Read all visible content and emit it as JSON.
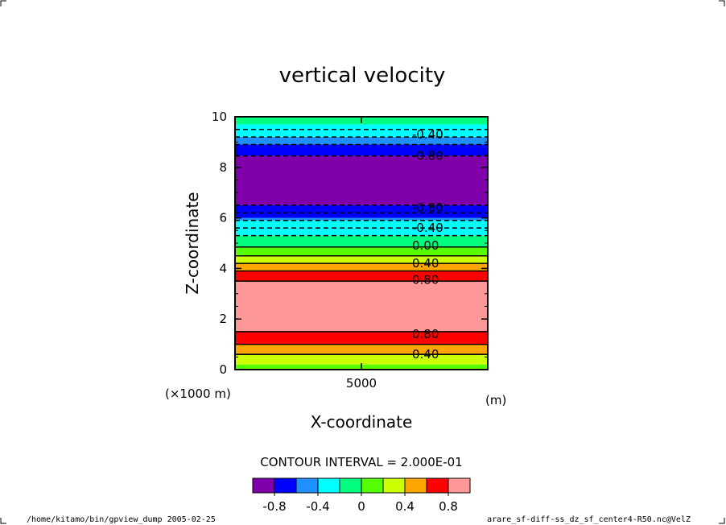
{
  "chart_data": {
    "type": "heatmap",
    "title": "vertical velocity",
    "xlabel": "X-coordinate",
    "ylabel": "Z-coordinate",
    "x_unit_label": "(m)",
    "x_scale_label": "(×1000 m)",
    "y_range": [
      0,
      10
    ],
    "y_ticks": [
      "0",
      "2",
      "4",
      "6",
      "8",
      "10"
    ],
    "x_ticks": [
      "5000"
    ],
    "bands": [
      {
        "z0": 0.0,
        "z1": 0.2,
        "color": "#55ff00"
      },
      {
        "z0": 0.2,
        "z1": 0.6,
        "color": "#ccff00"
      },
      {
        "z0": 0.6,
        "z1": 1.0,
        "color": "#ffa500"
      },
      {
        "z0": 1.0,
        "z1": 1.5,
        "color": "#ff0000"
      },
      {
        "z0": 1.5,
        "z1": 3.5,
        "color": "#ff9999"
      },
      {
        "z0": 3.5,
        "z1": 3.9,
        "color": "#ff0000"
      },
      {
        "z0": 3.9,
        "z1": 4.2,
        "color": "#ffa500"
      },
      {
        "z0": 4.2,
        "z1": 4.5,
        "color": "#ccff00"
      },
      {
        "z0": 4.5,
        "z1": 4.85,
        "color": "#55ff00"
      },
      {
        "z0": 4.85,
        "z1": 5.3,
        "color": "#00ff7f"
      },
      {
        "z0": 5.3,
        "z1": 5.9,
        "color": "#00ffff"
      },
      {
        "z0": 5.9,
        "z1": 6.0,
        "color": "#1e90ff"
      },
      {
        "z0": 6.0,
        "z1": 6.5,
        "color": "#0000ff"
      },
      {
        "z0": 6.5,
        "z1": 8.45,
        "color": "#7f00aa"
      },
      {
        "z0": 8.45,
        "z1": 8.9,
        "color": "#0000ff"
      },
      {
        "z0": 8.9,
        "z1": 9.2,
        "color": "#1e90ff"
      },
      {
        "z0": 9.2,
        "z1": 9.7,
        "color": "#00ffff"
      },
      {
        "z0": 9.7,
        "z1": 10.0,
        "color": "#00ff7f"
      }
    ],
    "contours": [
      {
        "z": 0.6,
        "style": "solid"
      },
      {
        "z": 0.6,
        "style": "solid"
      },
      {
        "z": 1.0,
        "style": "solid"
      },
      {
        "z": 1.5,
        "style": "solid"
      },
      {
        "z": 3.5,
        "style": "solid"
      },
      {
        "z": 3.9,
        "style": "solid"
      },
      {
        "z": 4.2,
        "style": "solid"
      },
      {
        "z": 4.5,
        "style": "solid"
      },
      {
        "z": 4.85,
        "style": "solid"
      },
      {
        "z": 5.3,
        "style": "dashed"
      },
      {
        "z": 5.6,
        "style": "dashed"
      },
      {
        "z": 5.9,
        "style": "dashed"
      },
      {
        "z": 6.2,
        "style": "dashed"
      },
      {
        "z": 6.5,
        "style": "dashed"
      },
      {
        "z": 8.45,
        "style": "dashed"
      },
      {
        "z": 8.9,
        "style": "dashed"
      },
      {
        "z": 9.2,
        "style": "dashed"
      },
      {
        "z": 9.5,
        "style": "dashed"
      }
    ],
    "contour_labels": [
      {
        "z": 0.6,
        "text": "0.40"
      },
      {
        "z": 1.4,
        "text": "0.80"
      },
      {
        "z": 3.55,
        "text": "0.80"
      },
      {
        "z": 4.2,
        "text": "0.40"
      },
      {
        "z": 4.9,
        "text": "0.00"
      },
      {
        "z": 5.6,
        "text": "-0.40"
      },
      {
        "z": 6.4,
        "text": "-0.80"
      },
      {
        "z": 8.45,
        "text": "-0.80"
      },
      {
        "z": 9.3,
        "text": "-0.40"
      }
    ],
    "contour_interval_text": "CONTOUR INTERVAL = 2.000E-01",
    "colorbar": {
      "colors": [
        "#7f00aa",
        "#0000ff",
        "#1e90ff",
        "#00ffff",
        "#00ff7f",
        "#55ff00",
        "#ccff00",
        "#ffa500",
        "#ff0000",
        "#ff9999"
      ],
      "tick_labels": [
        "-0.8",
        "-0.4",
        "0",
        "0.4",
        "0.8"
      ]
    }
  },
  "footer": {
    "left": "/home/kitamo/bin/gpview_dump  2005-02-25",
    "right": "arare_sf-diff-ss_dz_sf_center4-R50.nc@VelZ"
  }
}
